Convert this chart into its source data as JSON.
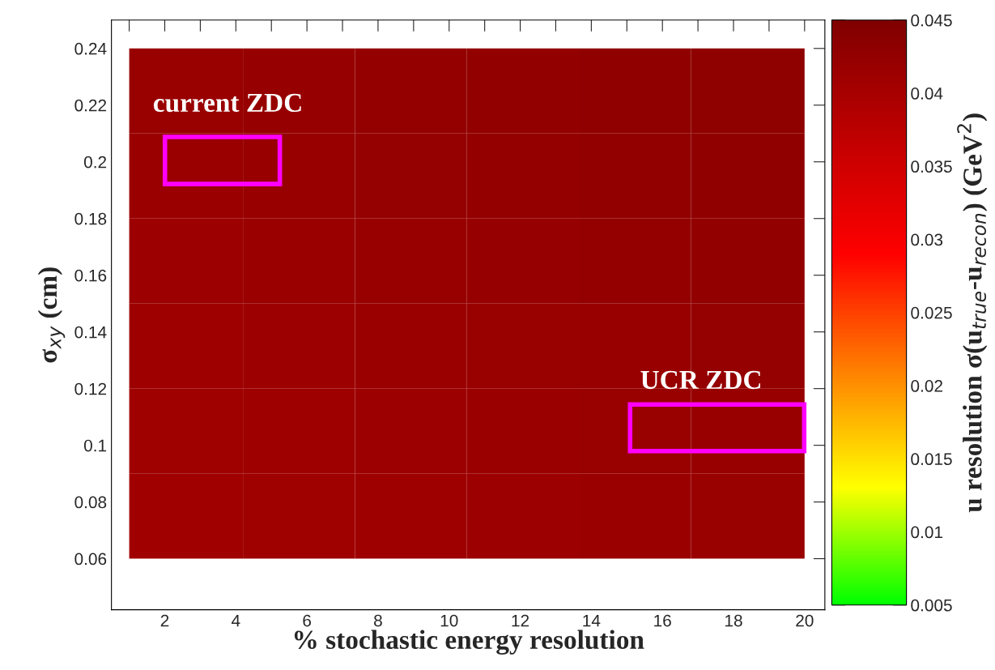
{
  "chart_data": {
    "type": "heatmap",
    "xlabel": "% stochastic energy resolution",
    "ylabel": "σ$_{xy}$ (cm)",
    "clabel": "u resolution σ(u$_{true}$-u$_{recon}$) (GeV$^{2}$)",
    "x": [
      2.6,
      5.8,
      8.9,
      12.1,
      15.2,
      18.4
    ],
    "y": [
      0.225,
      0.195,
      0.165,
      0.135,
      0.105,
      0.075
    ],
    "cells": [
      [
        0.0418,
        0.0421,
        0.0424,
        0.0426,
        0.0429,
        0.0431
      ],
      [
        0.0416,
        0.0419,
        0.0422,
        0.0424,
        0.0427,
        0.0429
      ],
      [
        0.0414,
        0.0416,
        0.0419,
        0.0421,
        0.0424,
        0.0427
      ],
      [
        0.0412,
        0.0414,
        0.0416,
        0.0418,
        0.042,
        0.0422
      ],
      [
        0.041,
        0.0412,
        0.0414,
        0.0416,
        0.0418,
        0.042
      ],
      [
        0.0408,
        0.041,
        0.0412,
        0.0414,
        0.0416,
        0.0418
      ]
    ],
    "colors": [
      "#00ff00",
      "#ffff00",
      "#ff8000",
      "#ff0000",
      "#c00000",
      "#800000"
    ],
    "clim": [
      0.005,
      0.045
    ],
    "cticks": [
      {
        "value": 0.005,
        "label": "0.005"
      },
      {
        "value": 0.01,
        "label": "0.01"
      },
      {
        "value": 0.015,
        "label": "0.015"
      },
      {
        "value": 0.02,
        "label": "0.02"
      },
      {
        "value": 0.025,
        "label": "0.025"
      },
      {
        "value": 0.03,
        "label": "0.03"
      },
      {
        "value": 0.035,
        "label": "0.035"
      },
      {
        "value": 0.04,
        "label": "0.04"
      },
      {
        "value": 0.045,
        "label": "0.045"
      }
    ],
    "xlim": [
      0.5,
      20.57
    ],
    "ylim": [
      0.042,
      0.25
    ],
    "xticks": [
      {
        "value": 1,
        "label": null
      },
      2,
      {
        "value": 3,
        "label": null
      },
      4,
      {
        "value": 5,
        "label": null
      },
      6,
      {
        "value": 7,
        "label": null
      },
      8,
      {
        "value": 9,
        "label": null
      },
      10,
      {
        "value": 11,
        "label": null
      },
      12,
      {
        "value": 13,
        "label": null
      },
      14,
      {
        "value": 15,
        "label": null
      },
      16,
      {
        "value": 17,
        "label": null
      },
      18,
      {
        "value": 19,
        "label": null
      },
      20
    ],
    "yticks": [
      {
        "value": 0.06,
        "label": "0.06"
      },
      {
        "value": 0.08,
        "label": "0.08"
      },
      {
        "value": 0.1,
        "label": "0.1"
      },
      {
        "value": 0.12,
        "label": "0.12"
      },
      {
        "value": 0.14,
        "label": "0.14"
      },
      {
        "value": 0.16,
        "label": "0.16"
      },
      {
        "value": 0.18,
        "label": "0.18"
      },
      {
        "value": 0.2,
        "label": "0.2"
      },
      {
        "value": 0.22,
        "label": "0.22"
      },
      {
        "value": 0.24,
        "label": "0.24"
      }
    ],
    "annotations": [
      "current ZDC",
      "UCR ZDC"
    ]
  }
}
